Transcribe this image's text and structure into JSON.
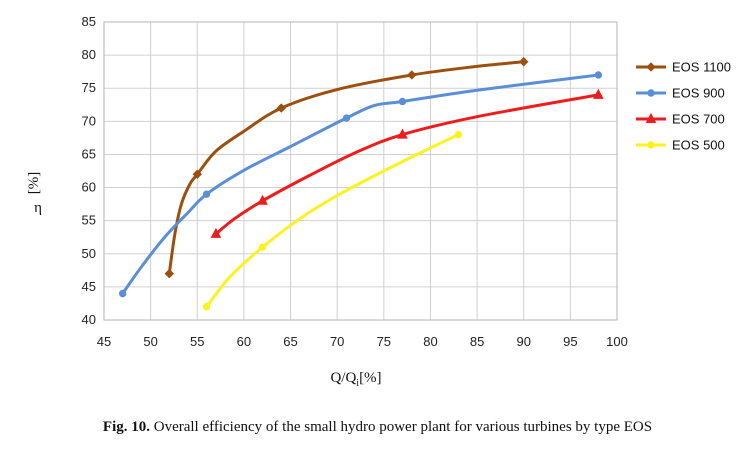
{
  "chart_data": {
    "type": "line",
    "xlabel": "Q/Q",
    "xlabel_sub": "i",
    "xlabel_unit": "[%]",
    "ylabel": "η",
    "ylabel_unit": "[%]",
    "xlim": [
      45,
      100
    ],
    "ylim": [
      40,
      85
    ],
    "xticks": [
      45,
      50,
      55,
      60,
      65,
      70,
      75,
      80,
      85,
      90,
      95,
      100
    ],
    "yticks": [
      40,
      45,
      50,
      55,
      60,
      65,
      70,
      75,
      80,
      85
    ],
    "grid": true,
    "legend_position": "right",
    "series": [
      {
        "name": "EOS 1100",
        "color": "#9c4f0f",
        "marker": "diamond",
        "markers": [
          [
            52,
            47
          ],
          [
            55,
            62
          ],
          [
            64,
            72
          ],
          [
            78,
            77
          ],
          [
            90,
            79
          ]
        ],
        "curve": [
          [
            52,
            47
          ],
          [
            52.6,
            53
          ],
          [
            53.3,
            57.5
          ],
          [
            54.2,
            60.5
          ],
          [
            55,
            62
          ],
          [
            57,
            65.5
          ],
          [
            60,
            68.5
          ],
          [
            64,
            72
          ],
          [
            70,
            74.8
          ],
          [
            78,
            77
          ],
          [
            85,
            78.3
          ],
          [
            90,
            79
          ]
        ]
      },
      {
        "name": "EOS 900",
        "color": "#5b8fd5",
        "marker": "circle",
        "markers": [
          [
            47,
            44
          ],
          [
            56,
            59
          ],
          [
            71,
            70.5
          ],
          [
            77,
            73
          ],
          [
            98,
            77
          ]
        ],
        "curve": [
          [
            47,
            44
          ],
          [
            49,
            48
          ],
          [
            51.5,
            52.5
          ],
          [
            54,
            56.2
          ],
          [
            56,
            59
          ],
          [
            60,
            62.6
          ],
          [
            65,
            66.2
          ],
          [
            71,
            70.5
          ],
          [
            74,
            72.4
          ],
          [
            77,
            73
          ],
          [
            85,
            74.7
          ],
          [
            98,
            77
          ]
        ]
      },
      {
        "name": "EOS 700",
        "color": "#ee1c1c",
        "marker": "triangle",
        "markers": [
          [
            57,
            53
          ],
          [
            62,
            58
          ],
          [
            77,
            68
          ],
          [
            98,
            74
          ]
        ],
        "curve": [
          [
            57,
            53
          ],
          [
            59,
            55.3
          ],
          [
            62,
            58
          ],
          [
            67,
            61.8
          ],
          [
            72,
            65.3
          ],
          [
            77,
            68
          ],
          [
            85,
            70.7
          ],
          [
            98,
            74
          ]
        ]
      },
      {
        "name": "EOS 500",
        "color": "#fbf21f",
        "marker": "circle",
        "markers": [
          [
            56,
            42
          ],
          [
            62,
            51
          ],
          [
            83,
            68
          ]
        ],
        "curve": [
          [
            56,
            42
          ],
          [
            58.5,
            46.5
          ],
          [
            62,
            51
          ],
          [
            66,
            55.3
          ],
          [
            70,
            58.8
          ],
          [
            75,
            62.5
          ],
          [
            79,
            65.3
          ],
          [
            83,
            68
          ]
        ]
      }
    ]
  },
  "caption": {
    "label": "Fig. 10.",
    "text": " Overall efficiency of the small hydro power plant for various turbines by type EOS"
  }
}
